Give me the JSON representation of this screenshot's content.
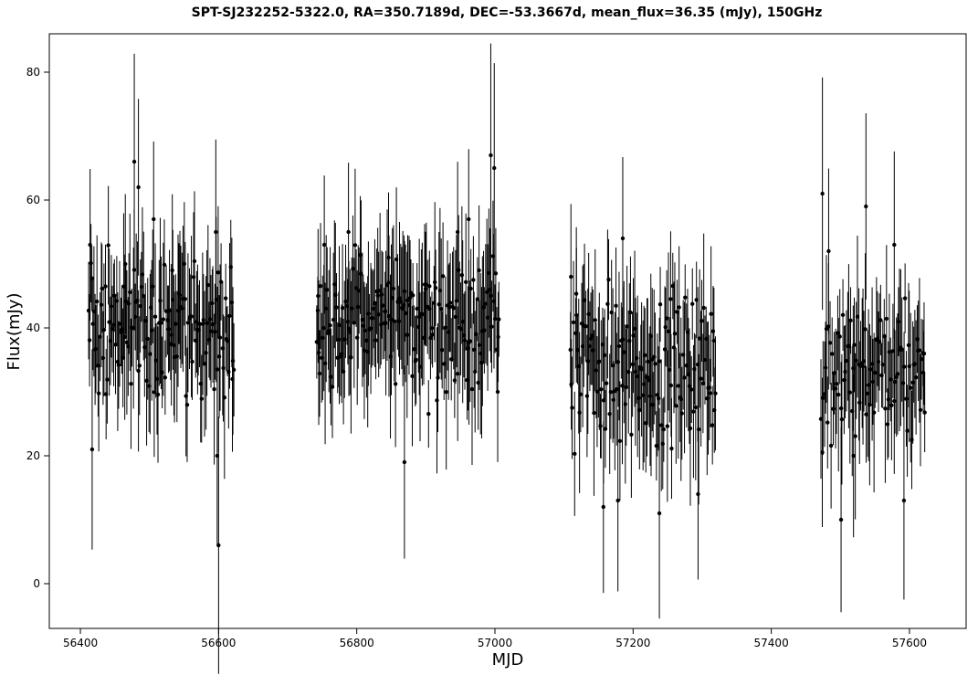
{
  "chart_data": {
    "type": "scatter",
    "title": "SPT-SJ232252-5322.0, RA=350.7189d, DEC=-53.3667d, mean_flux=36.35 (mJy), 150GHz",
    "xlabel": "MJD",
    "ylabel": "Flux(mJy)",
    "xlim": [
      56355,
      57682
    ],
    "ylim": [
      -7,
      86
    ],
    "xticks": [
      "56400",
      "56600",
      "56800",
      "57000",
      "57200",
      "57400",
      "57600"
    ],
    "yticks": [
      "0",
      "20",
      "40",
      "60",
      "80"
    ],
    "grid": false,
    "legend": "none",
    "marker_color": "#000000",
    "seasons": [
      {
        "start": 56412,
        "end": 56622,
        "spacing": 1.5,
        "base": 40,
        "highlights": [
          [
            56414,
            53
          ],
          [
            56417,
            21
          ],
          [
            56465,
            50
          ],
          [
            56478,
            66
          ],
          [
            56484,
            62
          ],
          [
            56506,
            57
          ],
          [
            56533,
            49
          ],
          [
            56596,
            55
          ],
          [
            56598,
            20
          ],
          [
            56600,
            6
          ],
          [
            56620,
            32
          ]
        ]
      },
      {
        "start": 56742,
        "end": 57007,
        "spacing": 1.5,
        "base": 41,
        "highlights": [
          [
            56744,
            45
          ],
          [
            56753,
            53
          ],
          [
            56788,
            55
          ],
          [
            56846,
            51
          ],
          [
            56869,
            19
          ],
          [
            56905,
            43
          ],
          [
            56946,
            55
          ],
          [
            56962,
            57
          ],
          [
            56977,
            49
          ],
          [
            56994,
            67
          ],
          [
            56999,
            65
          ],
          [
            57004,
            30
          ]
        ]
      },
      {
        "start": 57109,
        "end": 57320,
        "spacing": 1.5,
        "base": 34,
        "highlights": [
          [
            57110,
            48
          ],
          [
            57118,
            42
          ],
          [
            57157,
            12
          ],
          [
            57178,
            13
          ],
          [
            57185,
            54
          ],
          [
            57226,
            28
          ],
          [
            57238,
            11
          ],
          [
            57255,
            31
          ],
          [
            57294,
            14
          ],
          [
            57317,
            38
          ]
        ]
      },
      {
        "start": 57472,
        "end": 57623,
        "spacing": 1.6,
        "base": 33,
        "highlights": [
          [
            57474,
            61
          ],
          [
            57483,
            52
          ],
          [
            57501,
            10
          ],
          [
            57519,
            20
          ],
          [
            57537,
            59
          ],
          [
            57578,
            53
          ],
          [
            57592,
            13
          ],
          [
            57620,
            33
          ]
        ]
      }
    ]
  }
}
